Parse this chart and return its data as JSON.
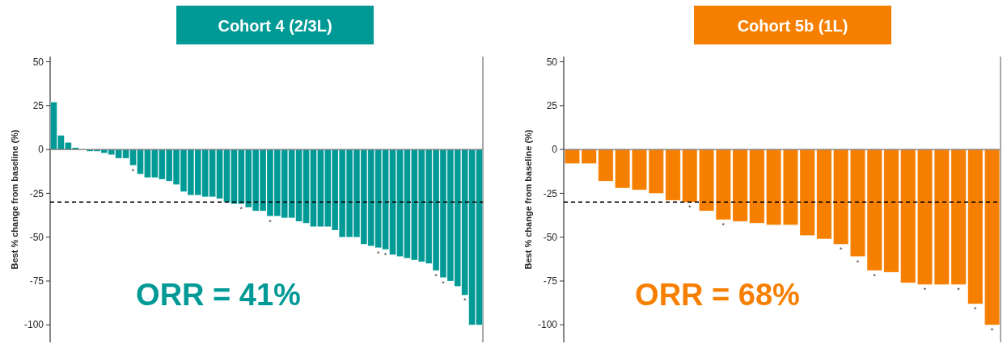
{
  "chart_data": [
    {
      "type": "bar",
      "title": "Cohort 4 (2/3L)",
      "ylabel": "Best % change from baseline (%)",
      "color": "#009a96",
      "categories": [
        null,
        null,
        null,
        null,
        null,
        null,
        null,
        null,
        null,
        null,
        null,
        null,
        null,
        null,
        null,
        null,
        null,
        null,
        null,
        null,
        null,
        null,
        null,
        null,
        null,
        null,
        null,
        null,
        null,
        null,
        null,
        null,
        null,
        null,
        null,
        null,
        null,
        null,
        null,
        null,
        null,
        null,
        null,
        null,
        null,
        null,
        null,
        null,
        null,
        null,
        null,
        null,
        null,
        null,
        null,
        null,
        null,
        null,
        null,
        null
      ],
      "values": [
        27,
        8,
        4,
        1,
        null,
        -1,
        -1,
        -2,
        -3,
        -5,
        -5,
        -9,
        -14,
        -16,
        -16,
        -17,
        -18,
        -20,
        -24,
        -26,
        -26,
        -27,
        -27,
        -28,
        -30,
        -31,
        -31,
        -33,
        -35,
        -35,
        -38,
        -38,
        -39,
        -39,
        -41,
        -42,
        -44,
        -44,
        -44,
        -46,
        -50,
        -50,
        -50,
        -54,
        -55,
        -56,
        -57,
        -60,
        -61,
        -62,
        -63,
        -64,
        -65,
        -69,
        -73,
        -75,
        -78,
        -83,
        -100,
        -100
      ],
      "value_labels": [
        null,
        null,
        null,
        null,
        null,
        null,
        null,
        null,
        null,
        null,
        null,
        "*",
        null,
        null,
        null,
        null,
        null,
        null,
        null,
        null,
        null,
        null,
        null,
        null,
        null,
        null,
        "*",
        null,
        null,
        null,
        "*",
        null,
        null,
        null,
        null,
        null,
        null,
        null,
        null,
        null,
        null,
        null,
        null,
        null,
        null,
        "*",
        "*",
        null,
        null,
        null,
        null,
        null,
        null,
        "*",
        "*",
        null,
        null,
        "*",
        null,
        null
      ],
      "ylim": [
        -110,
        53
      ],
      "yticks": [
        50,
        25,
        0,
        -25,
        -50,
        -75,
        -100
      ],
      "ref_lines": [
        {
          "axis": "y",
          "value": -30,
          "line_style": "dashed",
          "color": "#000000"
        }
      ],
      "annotations": [
        "ORR = 41%"
      ]
    },
    {
      "type": "bar",
      "title": "Cohort 5b (1L)",
      "ylabel": "Best % change from baseline (%)",
      "color": "#f77f00",
      "categories": [
        null,
        null,
        null,
        null,
        null,
        null,
        null,
        null,
        null,
        null,
        null,
        null,
        null,
        null,
        null,
        null,
        null,
        null,
        null,
        null,
        null,
        null,
        null,
        null,
        null,
        null
      ],
      "values": [
        -8,
        -8,
        -18,
        -22,
        -23,
        -25,
        -29,
        -30,
        -35,
        -40,
        -41,
        -42,
        -43,
        -43,
        -49,
        -51,
        -54,
        -61,
        -69,
        -70,
        -76,
        -77,
        -77,
        -77,
        -88,
        -100
      ],
      "value_labels": [
        null,
        null,
        null,
        null,
        null,
        null,
        null,
        "*",
        null,
        "*",
        null,
        null,
        null,
        null,
        null,
        null,
        "*",
        "*",
        "*",
        null,
        null,
        "*",
        null,
        "*",
        "*",
        "*"
      ],
      "ylim": [
        -110,
        53
      ],
      "yticks": [
        50,
        25,
        0,
        -25,
        -50,
        -75,
        -100
      ],
      "ref_lines": [
        {
          "axis": "y",
          "value": -30,
          "line_style": "dashed",
          "color": "#000000"
        }
      ],
      "annotations": [
        "ORR = 68%"
      ]
    }
  ]
}
